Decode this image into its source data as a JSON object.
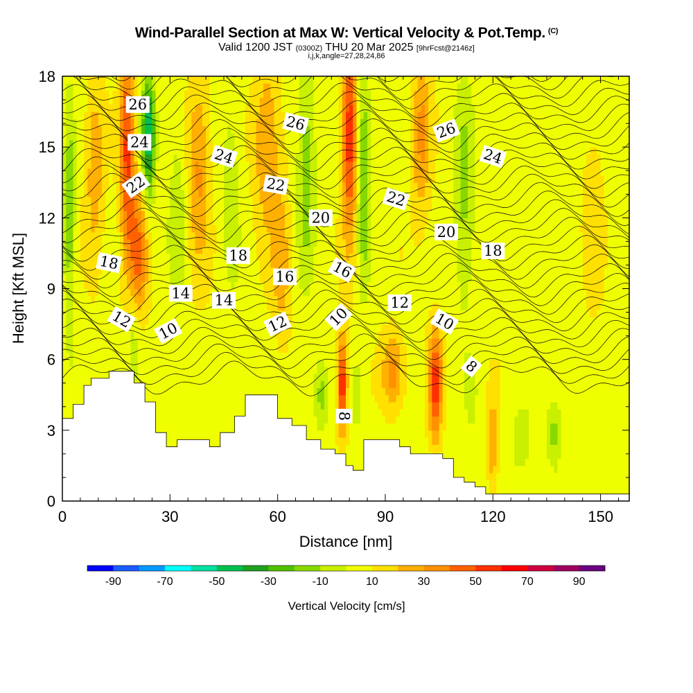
{
  "title": {
    "main": "Wind-Parallel Section at Max W: Vertical Velocity & Pot.Temp.",
    "copyright": "(C)",
    "valid_prefix": "Valid 1200 JST",
    "valid_utc": "(0300Z)",
    "valid_date": "THU 20 Mar 2025",
    "forecast": "[9hrFcst@2146z]",
    "indices": "i,j,k,angle=27,28,24,86"
  },
  "chart_data": {
    "type": "heatmap",
    "xlabel": "Distance [nm]",
    "ylabel": "Height [Kft MSL]",
    "xlim": [
      0,
      158
    ],
    "ylim": [
      0,
      18
    ],
    "x_ticks": [
      0,
      30,
      60,
      90,
      120,
      150
    ],
    "y_ticks": [
      0,
      3,
      6,
      9,
      12,
      15,
      18
    ],
    "colorbar": {
      "title": "Vertical Velocity [cm/s]",
      "tick_labels": [
        "-90",
        "-70",
        "-50",
        "-30",
        "-10",
        "10",
        "30",
        "50",
        "70",
        "90"
      ],
      "tick_values": [
        -90,
        -70,
        -50,
        -30,
        -10,
        10,
        30,
        50,
        70,
        90
      ],
      "range": [
        -100,
        100
      ],
      "step": 10,
      "colors": [
        "#0000ff",
        "#1a5cff",
        "#0099ff",
        "#00ffff",
        "#00e0a0",
        "#00c050",
        "#20a020",
        "#50c000",
        "#88d800",
        "#c8f000",
        "#f0ff00",
        "#ffe000",
        "#ffb000",
        "#ff9000",
        "#ff6000",
        "#ff3000",
        "#ff0000",
        "#d00040",
        "#a00060",
        "#6a0080"
      ]
    },
    "terrain_profile": [
      {
        "x": 0,
        "y": 3.5
      },
      {
        "x": 3,
        "y": 4.1
      },
      {
        "x": 6,
        "y": 4.9
      },
      {
        "x": 8,
        "y": 5.2
      },
      {
        "x": 13,
        "y": 5.5
      },
      {
        "x": 20,
        "y": 5.0
      },
      {
        "x": 23,
        "y": 4.2
      },
      {
        "x": 26,
        "y": 2.9
      },
      {
        "x": 29,
        "y": 2.3
      },
      {
        "x": 32,
        "y": 2.6
      },
      {
        "x": 37,
        "y": 2.6
      },
      {
        "x": 41,
        "y": 2.3
      },
      {
        "x": 44,
        "y": 2.9
      },
      {
        "x": 48,
        "y": 3.6
      },
      {
        "x": 51,
        "y": 4.5
      },
      {
        "x": 57,
        "y": 4.5
      },
      {
        "x": 60,
        "y": 3.5
      },
      {
        "x": 64,
        "y": 3.2
      },
      {
        "x": 68,
        "y": 2.6
      },
      {
        "x": 72,
        "y": 2.2
      },
      {
        "x": 76,
        "y": 2.0
      },
      {
        "x": 79,
        "y": 1.5
      },
      {
        "x": 81,
        "y": 1.3
      },
      {
        "x": 84,
        "y": 2.6
      },
      {
        "x": 94,
        "y": 2.3
      },
      {
        "x": 97,
        "y": 2.0
      },
      {
        "x": 106,
        "y": 1.8
      },
      {
        "x": 109,
        "y": 1.0
      },
      {
        "x": 112,
        "y": 0.8
      },
      {
        "x": 115,
        "y": 0.6
      },
      {
        "x": 118,
        "y": 0.3
      },
      {
        "x": 158,
        "y": 0.3
      }
    ],
    "updrafts": [
      {
        "x": 18,
        "y": 15.0,
        "w": 45,
        "sx": 2.0,
        "sy": 4.5
      },
      {
        "x": 21,
        "y": 10.5,
        "w": 35,
        "sx": 2.5,
        "sy": 3.0
      },
      {
        "x": 24,
        "y": 15.5,
        "w": -55,
        "sx": 1.8,
        "sy": 2.5
      },
      {
        "x": 20,
        "y": 7.0,
        "w": -15,
        "sx": 2.0,
        "sy": 2.0
      },
      {
        "x": 2,
        "y": 12.0,
        "w": -25,
        "sx": 1.5,
        "sy": 5.0
      },
      {
        "x": 9,
        "y": 14.0,
        "w": 20,
        "sx": 2.5,
        "sy": 4.0
      },
      {
        "x": 32,
        "y": 12.0,
        "w": -15,
        "sx": 2.5,
        "sy": 4.0
      },
      {
        "x": 38,
        "y": 14.0,
        "w": 25,
        "sx": 3.0,
        "sy": 4.0
      },
      {
        "x": 47,
        "y": 13.0,
        "w": -15,
        "sx": 2.5,
        "sy": 4.0
      },
      {
        "x": 57,
        "y": 15.0,
        "w": 25,
        "sx": 3.5,
        "sy": 3.5
      },
      {
        "x": 61,
        "y": 10.0,
        "w": 20,
        "sx": 2.5,
        "sy": 3.0
      },
      {
        "x": 68,
        "y": 14.0,
        "w": -25,
        "sx": 2.5,
        "sy": 4.5
      },
      {
        "x": 80,
        "y": 15.5,
        "w": 50,
        "sx": 2.0,
        "sy": 4.5
      },
      {
        "x": 84,
        "y": 14.0,
        "w": -30,
        "sx": 1.8,
        "sy": 4.5
      },
      {
        "x": 72,
        "y": 4.5,
        "w": -20,
        "sx": 2.0,
        "sy": 1.5
      },
      {
        "x": 78,
        "y": 5.0,
        "w": 55,
        "sx": 1.3,
        "sy": 2.0
      },
      {
        "x": 82,
        "y": 4.5,
        "w": -15,
        "sx": 1.2,
        "sy": 1.8
      },
      {
        "x": 92,
        "y": 5.5,
        "w": 30,
        "sx": 3.0,
        "sy": 1.5
      },
      {
        "x": 100,
        "y": 15.5,
        "w": 25,
        "sx": 2.5,
        "sy": 3.5
      },
      {
        "x": 104,
        "y": 5.0,
        "w": 50,
        "sx": 1.8,
        "sy": 2.2
      },
      {
        "x": 112,
        "y": 13.0,
        "w": -20,
        "sx": 3.0,
        "sy": 5.0
      },
      {
        "x": 114,
        "y": 4.5,
        "w": -10,
        "sx": 2.0,
        "sy": 1.5
      },
      {
        "x": 120,
        "y": 2.5,
        "w": 25,
        "sx": 1.5,
        "sy": 1.8
      },
      {
        "x": 128,
        "y": 2.5,
        "w": -15,
        "sx": 2.5,
        "sy": 1.5
      },
      {
        "x": 137,
        "y": 3.0,
        "w": -20,
        "sx": 2.0,
        "sy": 1.5
      },
      {
        "x": 148,
        "y": 12.0,
        "w": 10,
        "sx": 3.0,
        "sy": 4.0
      },
      {
        "x": 142,
        "y": 7.0,
        "w": -5,
        "sx": 3.0,
        "sy": 3.0
      }
    ],
    "isentrope_labels": [
      {
        "text": "26",
        "x": 21,
        "y": 16.8,
        "angle": 0
      },
      {
        "text": "24",
        "x": 21.5,
        "y": 15.2,
        "angle": 0
      },
      {
        "text": "22",
        "x": 20.5,
        "y": 13.4,
        "angle": -35
      },
      {
        "text": "18",
        "x": 13,
        "y": 10.1,
        "angle": 12
      },
      {
        "text": "12",
        "x": 16.5,
        "y": 7.7,
        "angle": 30
      },
      {
        "text": "10",
        "x": 29.5,
        "y": 7.2,
        "angle": -28
      },
      {
        "text": "14",
        "x": 33,
        "y": 8.8,
        "angle": 0
      },
      {
        "text": "14",
        "x": 45,
        "y": 8.5,
        "angle": 0
      },
      {
        "text": "18",
        "x": 49,
        "y": 10.4,
        "angle": 0
      },
      {
        "text": "24",
        "x": 45,
        "y": 14.6,
        "angle": 18
      },
      {
        "text": "22",
        "x": 59.5,
        "y": 13.4,
        "angle": 10
      },
      {
        "text": "26",
        "x": 65,
        "y": 16.0,
        "angle": 15
      },
      {
        "text": "20",
        "x": 72,
        "y": 12.0,
        "angle": 0
      },
      {
        "text": "16",
        "x": 62,
        "y": 9.5,
        "angle": 0
      },
      {
        "text": "16",
        "x": 78,
        "y": 9.8,
        "angle": 28
      },
      {
        "text": "12",
        "x": 60,
        "y": 7.5,
        "angle": -25
      },
      {
        "text": "10",
        "x": 77,
        "y": 7.8,
        "angle": -45
      },
      {
        "text": "8",
        "x": 78.5,
        "y": 3.6,
        "angle": 90
      },
      {
        "text": "22",
        "x": 93,
        "y": 12.8,
        "angle": 18
      },
      {
        "text": "12",
        "x": 94,
        "y": 8.4,
        "angle": 0
      },
      {
        "text": "26",
        "x": 107,
        "y": 15.7,
        "angle": -20
      },
      {
        "text": "20",
        "x": 107,
        "y": 11.4,
        "angle": 0
      },
      {
        "text": "10",
        "x": 106.5,
        "y": 7.6,
        "angle": 30
      },
      {
        "text": "8",
        "x": 114,
        "y": 5.7,
        "angle": 40
      },
      {
        "text": "24",
        "x": 120,
        "y": 14.6,
        "angle": 18
      },
      {
        "text": "18",
        "x": 120,
        "y": 10.6,
        "angle": 0
      }
    ]
  }
}
